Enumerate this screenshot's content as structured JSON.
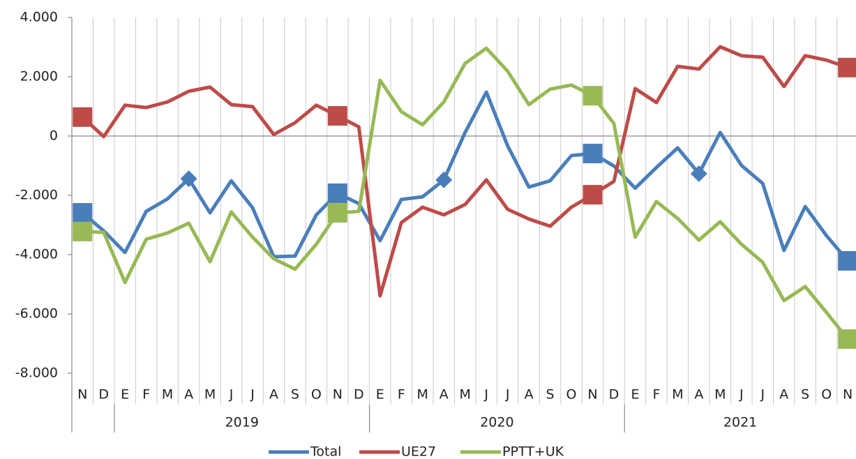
{
  "chart_data": {
    "type": "line",
    "categories": [
      "N",
      "D",
      "E",
      "F",
      "M",
      "A",
      "M",
      "J",
      "J",
      "A",
      "S",
      "O",
      "N",
      "D",
      "E",
      "F",
      "M",
      "A",
      "M",
      "J",
      "J",
      "A",
      "S",
      "O",
      "N",
      "D",
      "E",
      "F",
      "M",
      "A",
      "M",
      "J",
      "J",
      "A",
      "S",
      "O",
      "N"
    ],
    "groups": [
      {
        "label": "2019",
        "start": 2,
        "end": 13
      },
      {
        "label": "2020",
        "start": 14,
        "end": 25
      },
      {
        "label": "2021",
        "start": 26,
        "end": 36
      }
    ],
    "ylim": [
      -8000,
      4000
    ],
    "yticks": [
      {
        "value": -8000,
        "label": "-8.000"
      },
      {
        "value": -6000,
        "label": "-6.000"
      },
      {
        "value": -4000,
        "label": "-4.000"
      },
      {
        "value": -2000,
        "label": "-2.000"
      },
      0,
      {
        "value": 2000,
        "label": "2.000"
      },
      {
        "value": 4000,
        "label": "4.000"
      }
    ],
    "legend": "bottom",
    "series": [
      {
        "name": "Total",
        "color": "#4a7ebb",
        "values": [
          -2590,
          -3200,
          -3930,
          -2540,
          -2120,
          -1440,
          -2590,
          -1510,
          -2420,
          -4070,
          -4050,
          -2660,
          -1930,
          -2280,
          -3530,
          -2140,
          -2050,
          -1480,
          120,
          1480,
          -330,
          -1720,
          -1510,
          -660,
          -590,
          -1010,
          -1760,
          -1060,
          -400,
          -1270,
          120,
          -990,
          -1600,
          -3860,
          -2380,
          -3360,
          -4210
        ],
        "markers": [
          {
            "shape": "square",
            "at": [
              0,
              12,
              24,
              36
            ]
          },
          {
            "shape": "diamond",
            "at": [
              5,
              17,
              29
            ]
          }
        ]
      },
      {
        "name": "UE27",
        "color": "#be4b48",
        "values": [
          640,
          -20,
          1040,
          960,
          1150,
          1510,
          1650,
          1060,
          990,
          50,
          450,
          1040,
          680,
          310,
          -5390,
          -2920,
          -2400,
          -2660,
          -2310,
          -1480,
          -2470,
          -2800,
          -3040,
          -2400,
          -1980,
          -1530,
          1600,
          1130,
          2350,
          2260,
          3010,
          2710,
          2660,
          1670,
          2710,
          2560,
          2310
        ],
        "markers": [
          {
            "shape": "square",
            "at": [
              0,
              12,
              24,
              36
            ]
          }
        ]
      },
      {
        "name": "PPTT+UK",
        "color": "#98b954",
        "values": [
          -3220,
          -3250,
          -4940,
          -3480,
          -3270,
          -2940,
          -4240,
          -2560,
          -3410,
          -4140,
          -4490,
          -3650,
          -2590,
          -2540,
          1880,
          820,
          380,
          1150,
          2450,
          2960,
          2190,
          1060,
          1580,
          1720,
          1360,
          420,
          -3410,
          -2210,
          -2780,
          -3510,
          -2890,
          -3650,
          -4260,
          -5550,
          -5080,
          -5950,
          -6850
        ],
        "markers": [
          {
            "shape": "square",
            "at": [
              0,
              12,
              24,
              36
            ]
          }
        ]
      }
    ]
  }
}
